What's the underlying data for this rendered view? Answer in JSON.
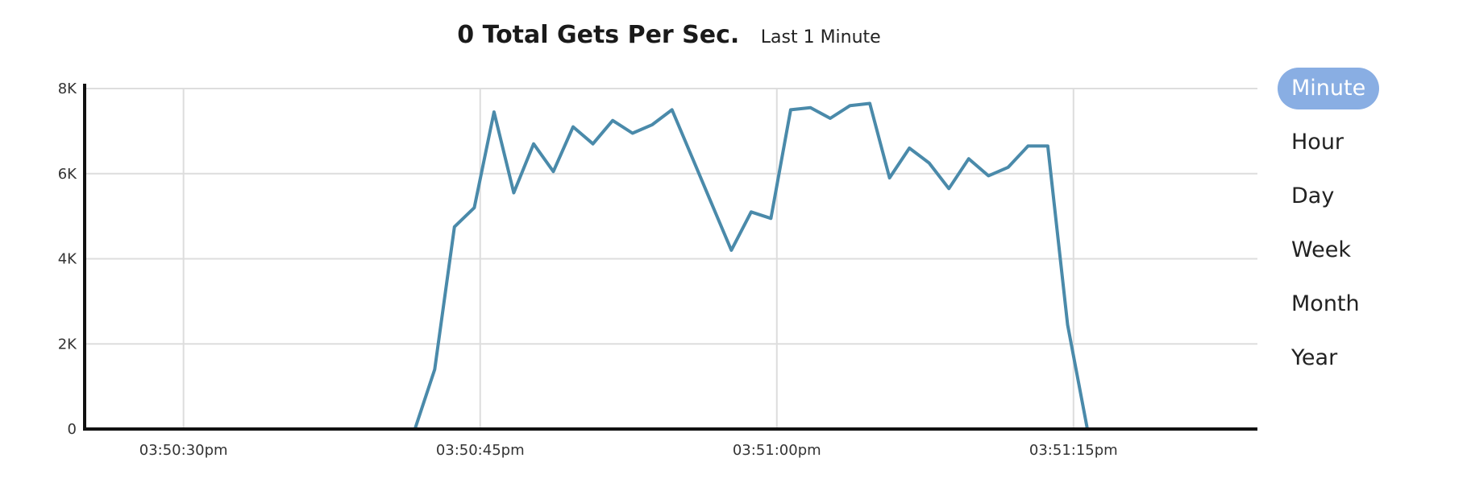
{
  "header": {
    "title": "0 Total Gets Per Sec.",
    "subtitle": "Last 1 Minute"
  },
  "range_selector": {
    "options": [
      "Minute",
      "Hour",
      "Day",
      "Week",
      "Month",
      "Year"
    ],
    "selected": "Minute"
  },
  "colors": {
    "line": "#4a8aaa",
    "active_button": "#89aee3",
    "grid": "#dddddd",
    "axis": "#111111"
  },
  "chart_data": {
    "type": "line",
    "title": "0 Total Gets Per Sec.",
    "subtitle": "Last 1 Minute",
    "xlabel": "",
    "ylabel": "",
    "grid": true,
    "legend": "none",
    "xlim": [
      "03:50:25pm",
      "03:51:23.5pm"
    ],
    "ylim": [
      0,
      8000
    ],
    "yticks": [
      0,
      2000,
      4000,
      6000,
      8000
    ],
    "ytick_labels": [
      "0",
      "2K",
      "4K",
      "6K",
      "8K"
    ],
    "xticks": [
      5,
      20,
      35,
      50
    ],
    "xtick_labels": [
      "03:50:30pm",
      "03:50:45pm",
      "03:51:00pm",
      "03:51:15pm"
    ],
    "x_unit": "seconds after 03:50:25pm",
    "series": [
      {
        "name": "",
        "x": [
          0,
          16.7,
          17.7,
          18.7,
          19.7,
          20.7,
          21.7,
          22.7,
          23.7,
          24.7,
          25.7,
          26.7,
          27.7,
          28.7,
          29.7,
          30.7,
          31.7,
          32.7,
          33.7,
          34.7,
          35.7,
          36.7,
          37.7,
          38.7,
          39.7,
          40.7,
          41.7,
          42.7,
          43.7,
          44.7,
          45.7,
          46.7,
          47.7,
          48.7,
          49.7,
          50.7,
          51.7,
          52.7,
          59.3
        ],
        "y": [
          0,
          0,
          1400,
          4750,
          5200,
          7450,
          5550,
          6700,
          6050,
          7100,
          6700,
          7250,
          6950,
          7150,
          7500,
          6400,
          5300,
          4200,
          5100,
          4950,
          7500,
          7550,
          7300,
          7600,
          7650,
          5900,
          6600,
          6250,
          5650,
          6350,
          5950,
          6150,
          6650,
          6650,
          2450,
          0,
          0,
          0,
          0
        ]
      }
    ]
  }
}
